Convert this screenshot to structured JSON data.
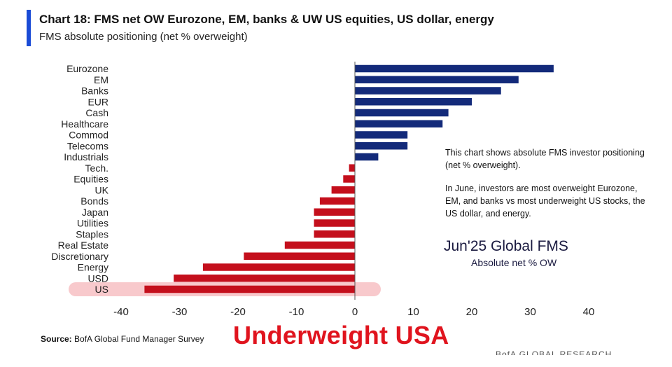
{
  "header": {
    "title": "Chart 18: FMS net OW Eurozone, EM, banks & UW US equities, US dollar, energy",
    "subtitle": "FMS absolute positioning (net % overweight)"
  },
  "colors": {
    "positive": "#132a7a",
    "negative": "#c40f1c",
    "highlight": "#f8c9cc",
    "accent": "#1a4bd6",
    "callout": "#e0141e"
  },
  "notes": {
    "line1": "This chart shows absolute FMS investor positioning (net % overweight).",
    "line2": "In June, investors are most overweight Eurozone, EM, and banks vs most underweight US stocks, the US dollar, and energy."
  },
  "fms_label": {
    "title": "Jun'25 Global FMS",
    "subtitle": "Absolute net % OW"
  },
  "footer": {
    "source_label": "Source:",
    "source_text": "BofA Global Fund Manager Survey",
    "callout": "Underweight USA",
    "brand": "BofA GLOBAL RESEARCH"
  },
  "chart_data": {
    "type": "bar",
    "orientation": "horizontal",
    "categories": [
      "Eurozone",
      "EM",
      "Banks",
      "EUR",
      "Cash",
      "Healthcare",
      "Commod",
      "Telecoms",
      "Industrials",
      "Tech.",
      "Equities",
      "UK",
      "Bonds",
      "Japan",
      "Utilities",
      "Staples",
      "Real Estate",
      "Discretionary",
      "Energy",
      "USD",
      "US"
    ],
    "values": [
      34,
      28,
      25,
      20,
      16,
      15,
      9,
      9,
      4,
      -1,
      -2,
      -4,
      -6,
      -7,
      -7,
      -7,
      -12,
      -19,
      -26,
      -31,
      -36
    ],
    "xlim": [
      -40,
      40
    ],
    "xticks": [
      -40,
      -30,
      -20,
      -10,
      0,
      10,
      20,
      30,
      40
    ],
    "highlighted_category": "US",
    "grid": false
  }
}
